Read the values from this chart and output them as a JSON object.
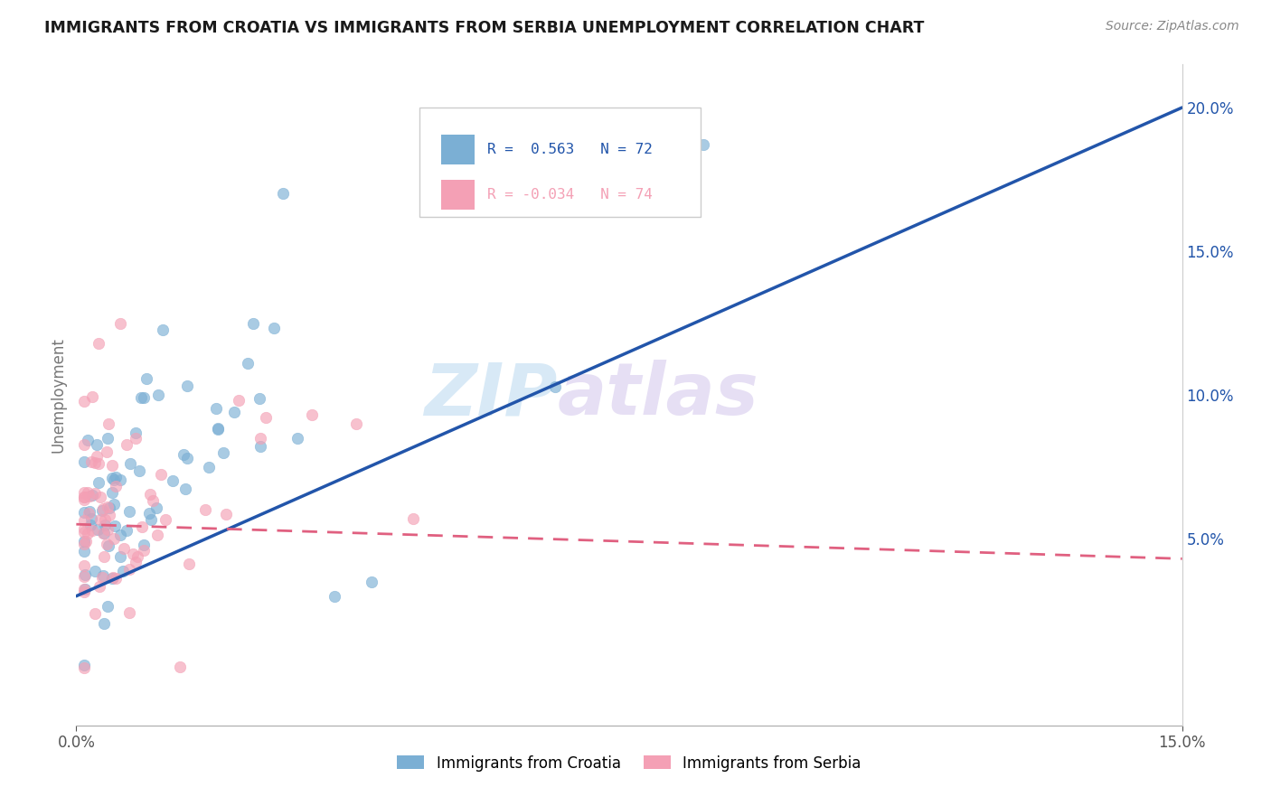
{
  "title": "IMMIGRANTS FROM CROATIA VS IMMIGRANTS FROM SERBIA UNEMPLOYMENT CORRELATION CHART",
  "source": "Source: ZipAtlas.com",
  "ylabel": "Unemployment",
  "watermark_zip": "ZIP",
  "watermark_atlas": "atlas",
  "background_color": "#ffffff",
  "plot_bg_color": "#ffffff",
  "grid_color": "#cccccc",
  "croatia_color": "#7bafd4",
  "serbia_color": "#f4a0b5",
  "croatia_line_color": "#2255aa",
  "serbia_line_color": "#e06080",
  "R_croatia": 0.563,
  "N_croatia": 72,
  "R_serbia": -0.034,
  "N_serbia": 74,
  "xlim": [
    0.0,
    0.15
  ],
  "ylim": [
    -0.015,
    0.215
  ],
  "yticks": [
    0.05,
    0.1,
    0.15,
    0.2
  ],
  "ytick_labels": [
    "5.0%",
    "10.0%",
    "15.0%",
    "20.0%"
  ],
  "croatia_line_x0": 0.0,
  "croatia_line_y0": 0.03,
  "croatia_line_x1": 0.15,
  "croatia_line_y1": 0.2,
  "serbia_line_x0": 0.0,
  "serbia_line_y0": 0.055,
  "serbia_line_x1": 0.15,
  "serbia_line_y1": 0.043
}
